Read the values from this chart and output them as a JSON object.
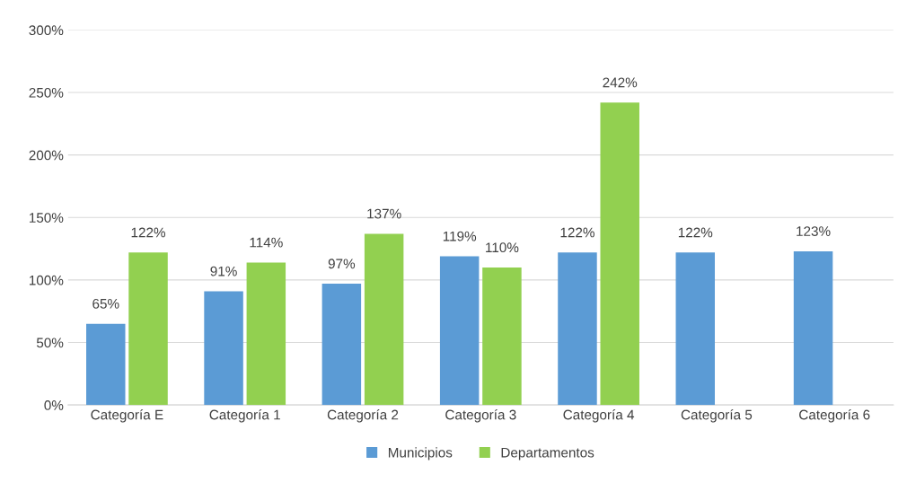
{
  "chart_data": {
    "type": "bar",
    "categories": [
      "Categoría E",
      "Categoría 1",
      "Categoría 2",
      "Categoría 3",
      "Categoría 4",
      "Categoría 5",
      "Categoría 6"
    ],
    "series": [
      {
        "name": "Municipios",
        "color": "#5b9bd5",
        "values": [
          65,
          91,
          97,
          119,
          122,
          122,
          123
        ],
        "value_labels": [
          "65%",
          "91%",
          "97%",
          "119%",
          "122%",
          "122%",
          "123%"
        ]
      },
      {
        "name": "Departamentos",
        "color": "#92d050",
        "values": [
          122,
          114,
          137,
          110,
          242,
          null,
          null
        ],
        "value_labels": [
          "122%",
          "114%",
          "137%",
          "110%",
          "242%",
          null,
          null
        ]
      }
    ],
    "ylim": [
      0,
      300
    ],
    "yticks": [
      {
        "value": 0,
        "label": "0%"
      },
      {
        "value": 50,
        "label": "50%"
      },
      {
        "value": 100,
        "label": "100%"
      },
      {
        "value": 150,
        "label": "150%"
      },
      {
        "value": 200,
        "label": "200%"
      },
      {
        "value": 250,
        "label": "250%"
      },
      {
        "value": 300,
        "label": "300%"
      }
    ],
    "grid": "y",
    "legend": "bottom"
  }
}
